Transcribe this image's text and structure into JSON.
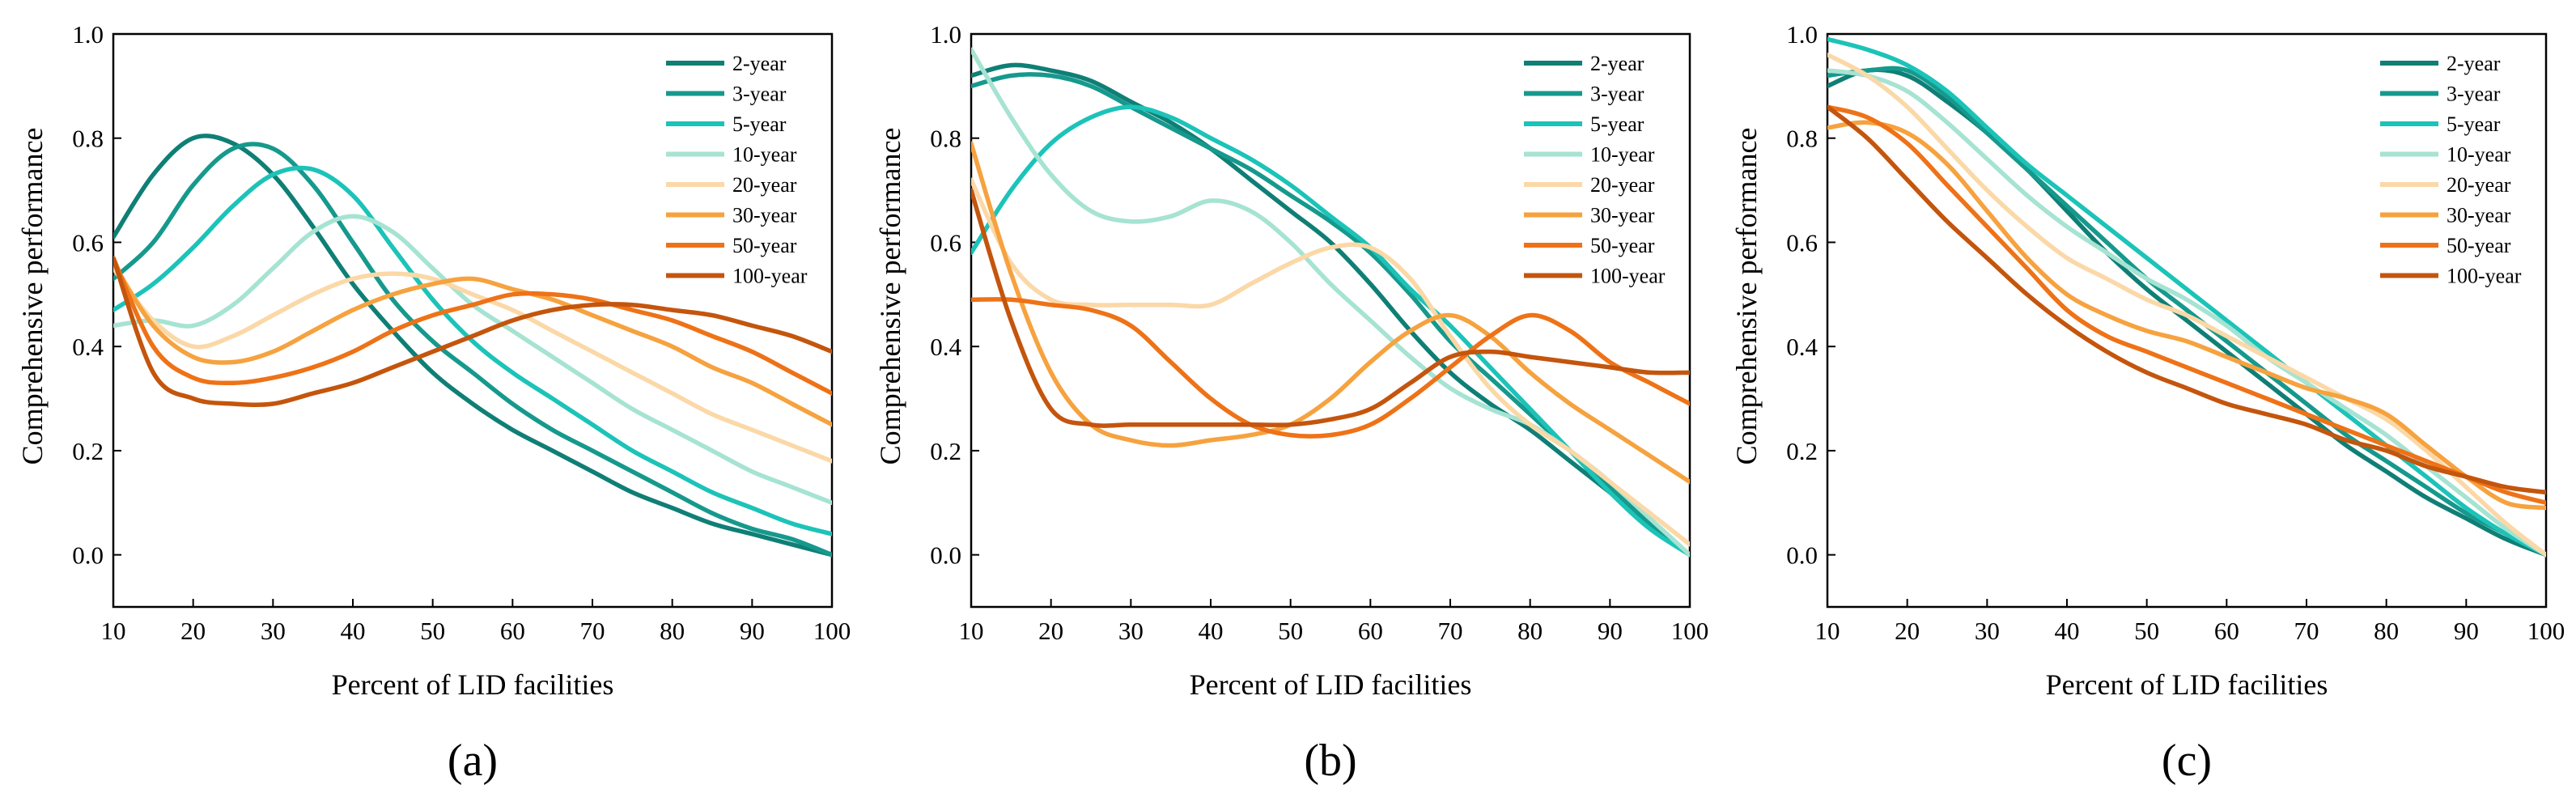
{
  "colors": {
    "2-year": "#0f7f76",
    "3-year": "#16998d",
    "5-year": "#1cc3b8",
    "10-year": "#a6e3d2",
    "20-year": "#fbd8a7",
    "30-year": "#f6a23f",
    "50-year": "#ee7217",
    "100-year": "#c4550d"
  },
  "chart_data": [
    {
      "type": "line",
      "panel": "(a)",
      "xlabel": "Percent of LID facilities",
      "ylabel": "Comprehensive performance",
      "xlim": [
        10,
        100
      ],
      "ylim": [
        -0.1,
        1.0
      ],
      "xticks": [
        "10",
        "20",
        "30",
        "40",
        "50",
        "60",
        "70",
        "80",
        "90",
        "100"
      ],
      "yticks": [
        "0.0",
        "0.2",
        "0.4",
        "0.6",
        "0.8",
        "1.0"
      ],
      "legend_position": "top-right",
      "x": [
        10,
        15,
        20,
        25,
        30,
        35,
        40,
        45,
        50,
        55,
        60,
        65,
        70,
        75,
        80,
        85,
        90,
        95,
        100
      ],
      "series": [
        {
          "name": "2-year",
          "values": [
            0.61,
            0.73,
            0.8,
            0.79,
            0.73,
            0.63,
            0.52,
            0.43,
            0.35,
            0.29,
            0.24,
            0.2,
            0.16,
            0.12,
            0.09,
            0.06,
            0.04,
            0.02,
            0.0
          ]
        },
        {
          "name": "3-year",
          "values": [
            0.53,
            0.6,
            0.71,
            0.78,
            0.78,
            0.71,
            0.6,
            0.49,
            0.41,
            0.35,
            0.29,
            0.24,
            0.2,
            0.16,
            0.12,
            0.08,
            0.05,
            0.03,
            0.0
          ]
        },
        {
          "name": "5-year",
          "values": [
            0.47,
            0.52,
            0.59,
            0.67,
            0.73,
            0.74,
            0.69,
            0.59,
            0.49,
            0.41,
            0.35,
            0.3,
            0.25,
            0.2,
            0.16,
            0.12,
            0.09,
            0.06,
            0.04
          ]
        },
        {
          "name": "10-year",
          "values": [
            0.44,
            0.45,
            0.44,
            0.48,
            0.55,
            0.62,
            0.65,
            0.62,
            0.55,
            0.48,
            0.43,
            0.38,
            0.33,
            0.28,
            0.24,
            0.2,
            0.16,
            0.13,
            0.1
          ]
        },
        {
          "name": "20-year",
          "values": [
            0.55,
            0.45,
            0.4,
            0.42,
            0.46,
            0.5,
            0.53,
            0.54,
            0.53,
            0.5,
            0.47,
            0.43,
            0.39,
            0.35,
            0.31,
            0.27,
            0.24,
            0.21,
            0.18
          ]
        },
        {
          "name": "30-year",
          "values": [
            0.56,
            0.44,
            0.38,
            0.37,
            0.39,
            0.43,
            0.47,
            0.5,
            0.52,
            0.53,
            0.51,
            0.49,
            0.46,
            0.43,
            0.4,
            0.36,
            0.33,
            0.29,
            0.25
          ]
        },
        {
          "name": "50-year",
          "values": [
            0.57,
            0.4,
            0.34,
            0.33,
            0.34,
            0.36,
            0.39,
            0.43,
            0.46,
            0.48,
            0.5,
            0.5,
            0.49,
            0.47,
            0.45,
            0.42,
            0.39,
            0.35,
            0.31
          ]
        },
        {
          "name": "100-year",
          "values": [
            0.57,
            0.35,
            0.3,
            0.29,
            0.29,
            0.31,
            0.33,
            0.36,
            0.39,
            0.42,
            0.45,
            0.47,
            0.48,
            0.48,
            0.47,
            0.46,
            0.44,
            0.42,
            0.39
          ]
        }
      ]
    },
    {
      "type": "line",
      "panel": "(b)",
      "xlabel": "Percent of LID facilities",
      "ylabel": "Comprehensive performance",
      "xlim": [
        10,
        100
      ],
      "ylim": [
        -0.1,
        1.0
      ],
      "xticks": [
        "10",
        "20",
        "30",
        "40",
        "50",
        "60",
        "70",
        "80",
        "90",
        "100"
      ],
      "yticks": [
        "0.0",
        "0.2",
        "0.4",
        "0.6",
        "0.8",
        "1.0"
      ],
      "legend_position": "top-right",
      "x": [
        10,
        15,
        20,
        25,
        30,
        35,
        40,
        45,
        50,
        55,
        60,
        65,
        70,
        75,
        80,
        85,
        90,
        95,
        100
      ],
      "series": [
        {
          "name": "2-year",
          "values": [
            0.92,
            0.94,
            0.93,
            0.91,
            0.87,
            0.83,
            0.78,
            0.72,
            0.66,
            0.6,
            0.52,
            0.43,
            0.35,
            0.29,
            0.24,
            0.18,
            0.12,
            0.06,
            0.0
          ]
        },
        {
          "name": "3-year",
          "values": [
            0.9,
            0.92,
            0.92,
            0.9,
            0.86,
            0.82,
            0.78,
            0.74,
            0.69,
            0.64,
            0.58,
            0.5,
            0.41,
            0.34,
            0.27,
            0.2,
            0.13,
            0.06,
            0.0
          ]
        },
        {
          "name": "5-year",
          "values": [
            0.58,
            0.7,
            0.79,
            0.84,
            0.86,
            0.84,
            0.8,
            0.76,
            0.71,
            0.65,
            0.59,
            0.51,
            0.44,
            0.36,
            0.28,
            0.2,
            0.12,
            0.05,
            0.0
          ]
        },
        {
          "name": "10-year",
          "values": [
            0.97,
            0.84,
            0.73,
            0.66,
            0.64,
            0.65,
            0.68,
            0.66,
            0.6,
            0.52,
            0.45,
            0.38,
            0.32,
            0.28,
            0.25,
            0.2,
            0.14,
            0.07,
            0.0
          ]
        },
        {
          "name": "20-year",
          "values": [
            0.72,
            0.56,
            0.49,
            0.48,
            0.48,
            0.48,
            0.48,
            0.52,
            0.56,
            0.59,
            0.59,
            0.53,
            0.42,
            0.32,
            0.25,
            0.2,
            0.14,
            0.08,
            0.02
          ]
        },
        {
          "name": "30-year",
          "values": [
            0.79,
            0.54,
            0.35,
            0.25,
            0.22,
            0.21,
            0.22,
            0.23,
            0.25,
            0.3,
            0.37,
            0.43,
            0.46,
            0.42,
            0.35,
            0.29,
            0.24,
            0.19,
            0.14
          ]
        },
        {
          "name": "50-year",
          "values": [
            0.49,
            0.49,
            0.48,
            0.47,
            0.44,
            0.37,
            0.3,
            0.25,
            0.23,
            0.23,
            0.25,
            0.3,
            0.36,
            0.42,
            0.46,
            0.43,
            0.37,
            0.33,
            0.29
          ]
        },
        {
          "name": "100-year",
          "values": [
            0.7,
            0.45,
            0.28,
            0.25,
            0.25,
            0.25,
            0.25,
            0.25,
            0.25,
            0.26,
            0.28,
            0.33,
            0.38,
            0.39,
            0.38,
            0.37,
            0.36,
            0.35,
            0.35
          ]
        }
      ]
    },
    {
      "type": "line",
      "panel": "(c)",
      "xlabel": "Percent of LID facilities",
      "ylabel": "Comprehensive performance",
      "xlim": [
        10,
        100
      ],
      "ylim": [
        -0.1,
        1.0
      ],
      "xticks": [
        "10",
        "20",
        "30",
        "40",
        "50",
        "60",
        "70",
        "80",
        "90",
        "100"
      ],
      "yticks": [
        "0.0",
        "0.2",
        "0.4",
        "0.6",
        "0.8",
        "1.0"
      ],
      "legend_position": "top-right",
      "x": [
        10,
        15,
        20,
        25,
        30,
        35,
        40,
        45,
        50,
        55,
        60,
        65,
        70,
        75,
        80,
        85,
        90,
        95,
        100
      ],
      "series": [
        {
          "name": "2-year",
          "values": [
            0.9,
            0.93,
            0.92,
            0.87,
            0.81,
            0.74,
            0.66,
            0.58,
            0.51,
            0.45,
            0.39,
            0.33,
            0.27,
            0.21,
            0.16,
            0.11,
            0.07,
            0.03,
            0.0
          ]
        },
        {
          "name": "3-year",
          "values": [
            0.92,
            0.93,
            0.93,
            0.88,
            0.81,
            0.74,
            0.67,
            0.6,
            0.53,
            0.47,
            0.41,
            0.35,
            0.29,
            0.23,
            0.18,
            0.13,
            0.08,
            0.04,
            0.0
          ]
        },
        {
          "name": "5-year",
          "values": [
            0.99,
            0.97,
            0.94,
            0.89,
            0.82,
            0.75,
            0.69,
            0.63,
            0.57,
            0.51,
            0.45,
            0.39,
            0.33,
            0.27,
            0.21,
            0.15,
            0.09,
            0.04,
            0.0
          ]
        },
        {
          "name": "10-year",
          "values": [
            0.93,
            0.92,
            0.89,
            0.83,
            0.76,
            0.69,
            0.63,
            0.58,
            0.53,
            0.49,
            0.44,
            0.38,
            0.33,
            0.28,
            0.23,
            0.17,
            0.11,
            0.05,
            0.0
          ]
        },
        {
          "name": "20-year",
          "values": [
            0.96,
            0.92,
            0.86,
            0.78,
            0.7,
            0.63,
            0.57,
            0.53,
            0.49,
            0.46,
            0.42,
            0.38,
            0.34,
            0.3,
            0.26,
            0.2,
            0.13,
            0.06,
            0.0
          ]
        },
        {
          "name": "30-year",
          "values": [
            0.82,
            0.83,
            0.81,
            0.75,
            0.66,
            0.57,
            0.5,
            0.46,
            0.43,
            0.41,
            0.38,
            0.35,
            0.32,
            0.3,
            0.27,
            0.21,
            0.15,
            0.1,
            0.09
          ]
        },
        {
          "name": "50-year",
          "values": [
            0.86,
            0.84,
            0.79,
            0.71,
            0.63,
            0.55,
            0.47,
            0.42,
            0.39,
            0.36,
            0.33,
            0.3,
            0.27,
            0.24,
            0.21,
            0.18,
            0.15,
            0.12,
            0.1
          ]
        },
        {
          "name": "100-year",
          "values": [
            0.86,
            0.8,
            0.72,
            0.64,
            0.57,
            0.5,
            0.44,
            0.39,
            0.35,
            0.32,
            0.29,
            0.27,
            0.25,
            0.22,
            0.2,
            0.17,
            0.15,
            0.13,
            0.12
          ]
        }
      ]
    }
  ]
}
